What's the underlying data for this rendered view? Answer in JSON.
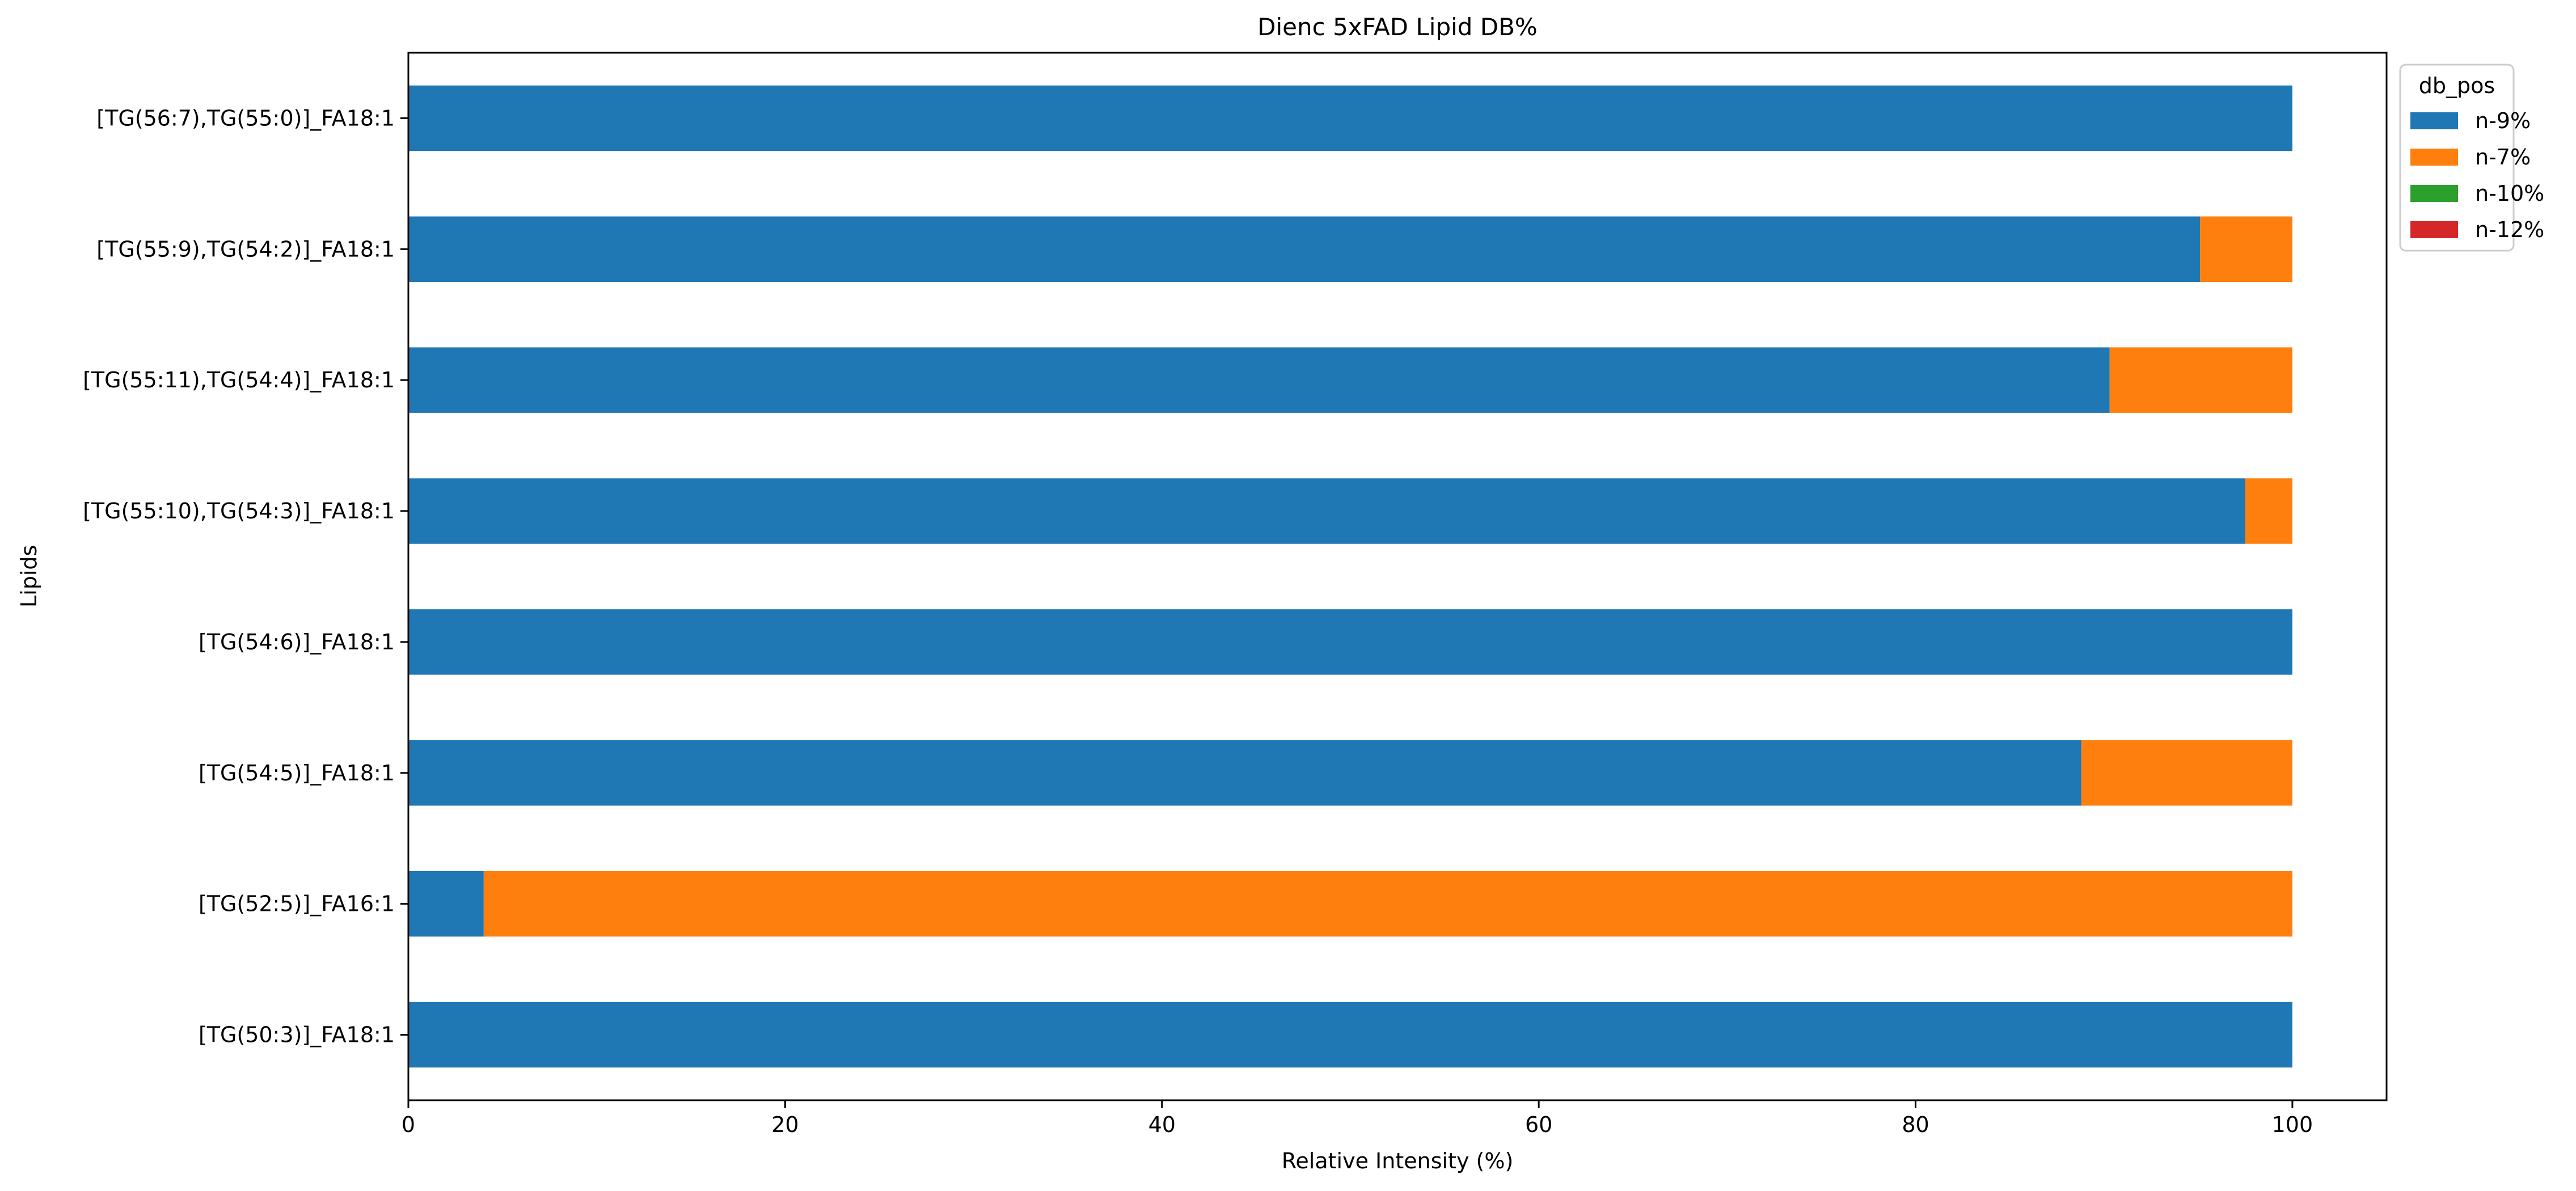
{
  "chart_data": {
    "type": "bar",
    "orientation": "horizontal",
    "stacked": true,
    "title": "Dienc 5xFAD Lipid DB%",
    "xlabel": "Relative Intensity (%)",
    "ylabel": "Lipids",
    "xlim": [
      0,
      105
    ],
    "xticks": [
      0,
      20,
      40,
      60,
      80,
      100
    ],
    "grid": false,
    "legend": {
      "title": "db_pos",
      "placement": "upper right, outside axes"
    },
    "categories": [
      "[TG(50:3)]_FA18:1",
      "[TG(52:5)]_FA16:1",
      "[TG(54:5)]_FA18:1",
      "[TG(54:6)]_FA18:1",
      "[TG(55:10),TG(54:3)]_FA18:1",
      "[TG(55:11),TG(54:4)]_FA18:1",
      "[TG(55:9),TG(54:2)]_FA18:1",
      "[TG(56:7),TG(55:0)]_FA18:1"
    ],
    "series": [
      {
        "name": "n-9%",
        "color": "#1f77b4",
        "values": [
          100,
          4,
          88.8,
          100,
          97.5,
          90.3,
          95.1,
          100
        ]
      },
      {
        "name": "n-7%",
        "color": "#ff7f0e",
        "values": [
          0,
          96,
          11.2,
          0,
          2.5,
          9.7,
          4.9,
          0
        ]
      },
      {
        "name": "n-10%",
        "color": "#2ca02c",
        "values": [
          0,
          0,
          0,
          0,
          0,
          0,
          0,
          0
        ]
      },
      {
        "name": "n-12%",
        "color": "#d62728",
        "values": [
          0,
          0,
          0,
          0,
          0,
          0,
          0,
          0
        ]
      }
    ]
  }
}
